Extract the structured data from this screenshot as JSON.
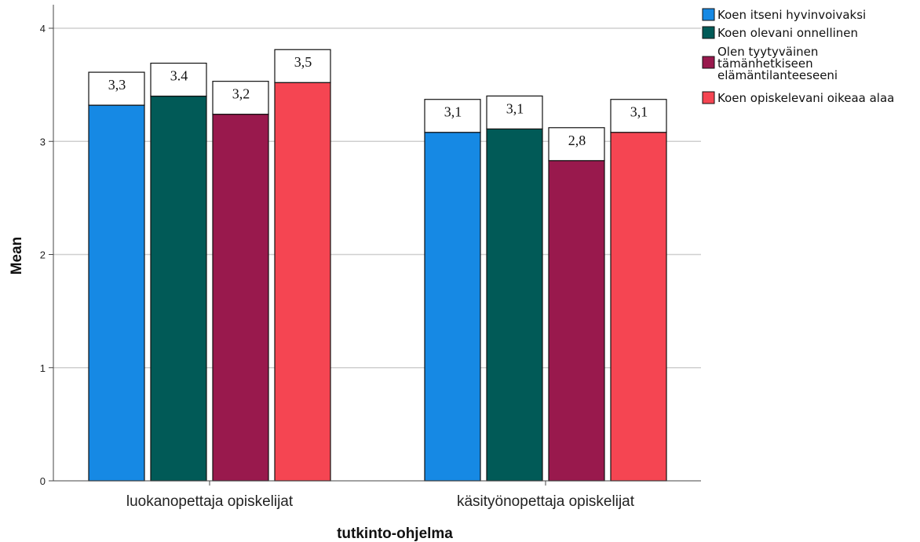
{
  "chart_data": {
    "type": "bar",
    "categories": [
      "luokanopettaja opiskelijat",
      "käsityönopettaja opiskelijat"
    ],
    "series": [
      {
        "name": "Koen itseni hyvinvoivaksi",
        "color": "#1689E4",
        "values": [
          3.32,
          3.08
        ],
        "labels": [
          "3,3",
          "3,1"
        ]
      },
      {
        "name": "Koen olevani onnellinen",
        "color": "#015A57",
        "values": [
          3.4,
          3.11
        ],
        "labels": [
          "3.4",
          "3,1"
        ]
      },
      {
        "name": "Olen tyytyväinen tämänhetkiseen elämäntilanteeseeni",
        "legend_lines": [
          "Olen tyytyväinen",
          "tämänhetkiseen",
          "elämäntilanteeseeni"
        ],
        "color": "#99194D",
        "values": [
          3.24,
          2.83
        ],
        "labels": [
          "3,2",
          "2,8"
        ]
      },
      {
        "name": "Koen opiskelevani oikeaa alaa",
        "color": "#F54552",
        "values": [
          3.52,
          3.08
        ],
        "labels": [
          "3,5",
          "3,1"
        ]
      }
    ],
    "xlabel": "tutkinto-ohjelma",
    "ylabel": "Mean",
    "ylim": [
      0,
      4
    ],
    "yticks": [
      "0",
      "1",
      "2",
      "3",
      "4"
    ],
    "grid": true,
    "legend_position": "top-right"
  }
}
